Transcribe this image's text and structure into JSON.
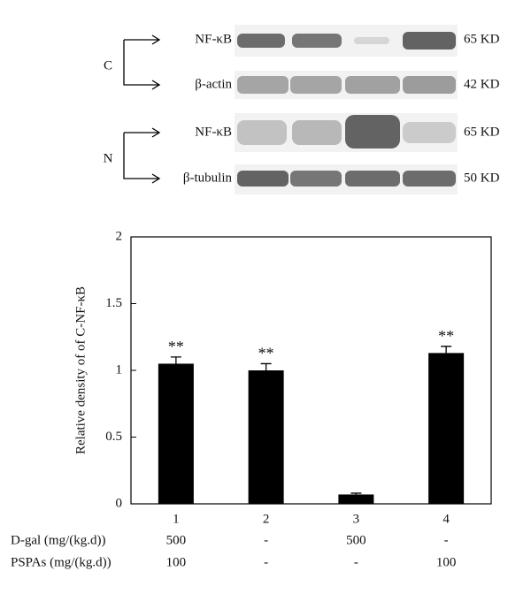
{
  "blot": {
    "groups": [
      "C",
      "N"
    ],
    "rows": [
      {
        "label": "NF-κB",
        "size": "65 KD"
      },
      {
        "label": "β-actin",
        "size": "42 KD"
      },
      {
        "label": "NF-κB",
        "size": "65 KD"
      },
      {
        "label": "β-tubulin",
        "size": "50 KD"
      }
    ]
  },
  "chart_data": {
    "type": "bar",
    "categories": [
      "1",
      "2",
      "3",
      "4"
    ],
    "values": [
      1.05,
      1.0,
      0.07,
      1.13
    ],
    "errors": [
      0.05,
      0.05,
      0.01,
      0.05
    ],
    "annotations": [
      "**",
      "**",
      null,
      "**"
    ],
    "color": "#000000",
    "y_label": "Relative density of of C-NF-κB",
    "ylim": [
      0,
      2
    ],
    "yticks": [
      0,
      0.5,
      1,
      1.5,
      2
    ],
    "treatments": [
      {
        "label": "D-gal (mg/(kg.d))",
        "values": [
          "500",
          "-",
          "500",
          "-"
        ]
      },
      {
        "label": "PSPAs (mg/(kg.d))",
        "values": [
          "100",
          "-",
          "-",
          "100"
        ]
      }
    ]
  }
}
